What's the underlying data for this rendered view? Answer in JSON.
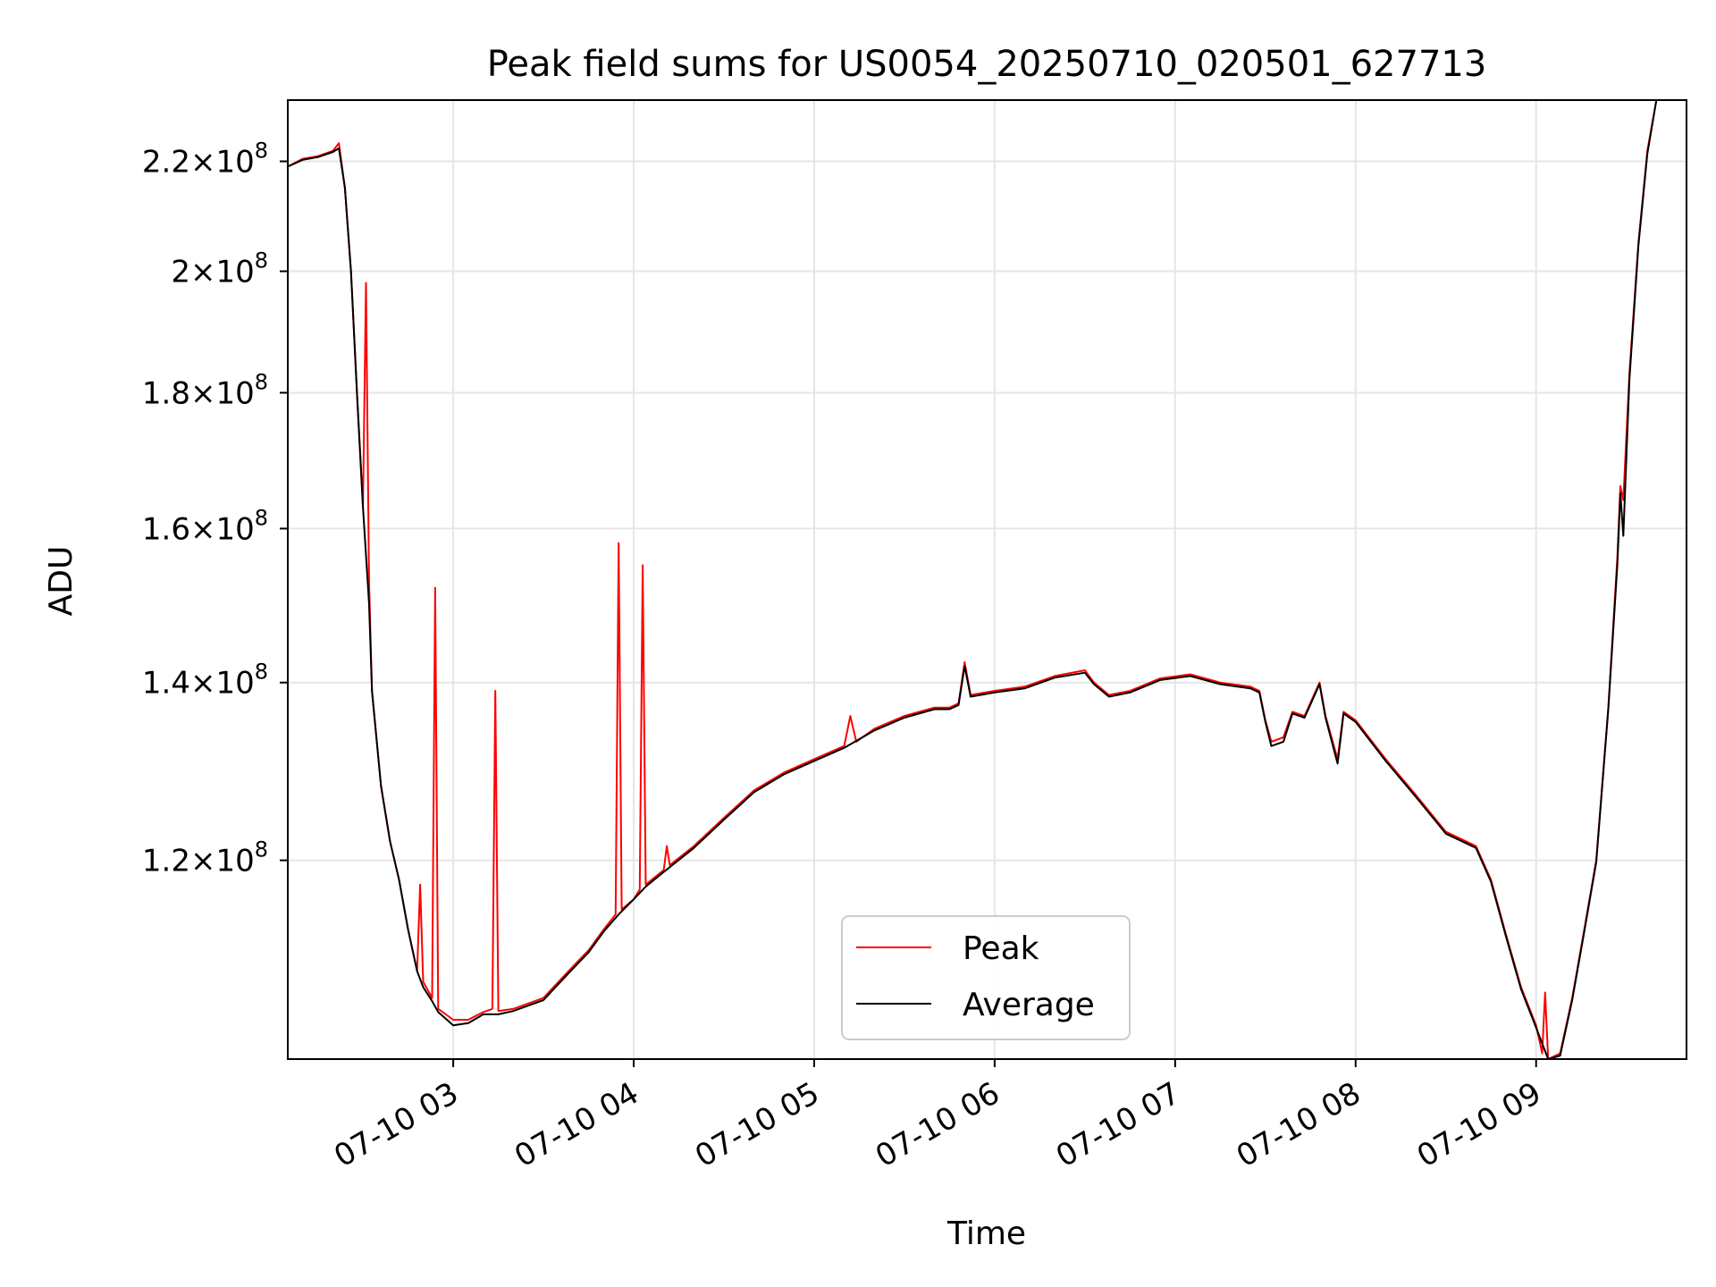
{
  "chart_data": {
    "type": "line",
    "title": "Peak field sums for US0054_20250710_020501_627713",
    "xlabel": "Time",
    "ylabel": "ADU",
    "x_axis": "time",
    "y_scale": "log",
    "xlim": [
      "07-10 02:05",
      "07-10 09:50"
    ],
    "ylim": [
      101000000,
      232000000
    ],
    "grid": true,
    "legend_position": "bottom-center",
    "x_ticks": [
      {
        "time": "07-10 03:00",
        "label": "07-10 03"
      },
      {
        "time": "07-10 04:00",
        "label": "07-10 04"
      },
      {
        "time": "07-10 05:00",
        "label": "07-10 05"
      },
      {
        "time": "07-10 06:00",
        "label": "07-10 06"
      },
      {
        "time": "07-10 07:00",
        "label": "07-10 07"
      },
      {
        "time": "07-10 08:00",
        "label": "07-10 08"
      },
      {
        "time": "07-10 09:00",
        "label": "07-10 09"
      }
    ],
    "y_ticks": [
      {
        "value": 120000000,
        "mantissa": "1.2",
        "exponent": "8"
      },
      {
        "value": 140000000,
        "mantissa": "1.4",
        "exponent": "8"
      },
      {
        "value": 160000000,
        "mantissa": "1.6",
        "exponent": "8"
      },
      {
        "value": 180000000,
        "mantissa": "1.8",
        "exponent": "8"
      },
      {
        "value": 200000000,
        "mantissa": "2",
        "exponent": "8"
      },
      {
        "value": 220000000,
        "mantissa": "2.2",
        "exponent": "8"
      }
    ],
    "series": [
      {
        "name": "Peak",
        "color": "#ff0000",
        "points": [
          [
            "07-10 02:05",
            219000000
          ],
          [
            "07-10 02:10",
            220500000
          ],
          [
            "07-10 02:15",
            221000000
          ],
          [
            "07-10 02:20",
            222000000
          ],
          [
            "07-10 02:22",
            223500000
          ],
          [
            "07-10 02:24",
            215000000
          ],
          [
            "07-10 02:26",
            200000000
          ],
          [
            "07-10 02:28",
            180000000
          ],
          [
            "07-10 02:30",
            163000000
          ],
          [
            "07-10 02:31",
            198000000
          ],
          [
            "07-10 02:32",
            153000000
          ],
          [
            "07-10 02:33",
            139000000
          ],
          [
            "07-10 02:36",
            128000000
          ],
          [
            "07-10 02:39",
            122000000
          ],
          [
            "07-10 02:42",
            118000000
          ],
          [
            "07-10 02:45",
            113000000
          ],
          [
            "07-10 02:48",
            109000000
          ],
          [
            "07-10 02:49",
            117500000
          ],
          [
            "07-10 02:50",
            108000000
          ],
          [
            "07-10 02:53",
            106500000
          ],
          [
            "07-10 02:54",
            152000000
          ],
          [
            "07-10 02:55",
            105500000
          ],
          [
            "07-10 03:00",
            104500000
          ],
          [
            "07-10 03:05",
            104500000
          ],
          [
            "07-10 03:10",
            105200000
          ],
          [
            "07-10 03:13",
            105500000
          ],
          [
            "07-10 03:14",
            139000000
          ],
          [
            "07-10 03:15",
            105300000
          ],
          [
            "07-10 03:20",
            105500000
          ],
          [
            "07-10 03:25",
            106000000
          ],
          [
            "07-10 03:30",
            106500000
          ],
          [
            "07-10 03:35",
            108000000
          ],
          [
            "07-10 03:40",
            109500000
          ],
          [
            "07-10 03:45",
            111000000
          ],
          [
            "07-10 03:50",
            113000000
          ],
          [
            "07-10 03:54",
            114500000
          ],
          [
            "07-10 03:55",
            158000000
          ],
          [
            "07-10 03:56",
            115000000
          ],
          [
            "07-10 04:00",
            116000000
          ],
          [
            "07-10 04:02",
            117000000
          ],
          [
            "07-10 04:03",
            155000000
          ],
          [
            "07-10 04:04",
            117500000
          ],
          [
            "07-10 04:10",
            119000000
          ],
          [
            "07-10 04:11",
            121500000
          ],
          [
            "07-10 04:12",
            119500000
          ],
          [
            "07-10 04:20",
            121500000
          ],
          [
            "07-10 04:30",
            124500000
          ],
          [
            "07-10 04:40",
            127500000
          ],
          [
            "07-10 04:50",
            129500000
          ],
          [
            "07-10 05:00",
            131000000
          ],
          [
            "07-10 05:10",
            132500000
          ],
          [
            "07-10 05:12",
            136000000
          ],
          [
            "07-10 05:14",
            133000000
          ],
          [
            "07-10 05:20",
            134500000
          ],
          [
            "07-10 05:30",
            136000000
          ],
          [
            "07-10 05:40",
            137000000
          ],
          [
            "07-10 05:45",
            137000000
          ],
          [
            "07-10 05:48",
            137500000
          ],
          [
            "07-10 05:50",
            142500000
          ],
          [
            "07-10 05:52",
            138500000
          ],
          [
            "07-10 06:00",
            139000000
          ],
          [
            "07-10 06:10",
            139500000
          ],
          [
            "07-10 06:20",
            140800000
          ],
          [
            "07-10 06:30",
            141500000
          ],
          [
            "07-10 06:33",
            140000000
          ],
          [
            "07-10 06:38",
            138500000
          ],
          [
            "07-10 06:45",
            139000000
          ],
          [
            "07-10 06:55",
            140500000
          ],
          [
            "07-10 07:05",
            141000000
          ],
          [
            "07-10 07:15",
            140000000
          ],
          [
            "07-10 07:25",
            139500000
          ],
          [
            "07-10 07:28",
            139000000
          ],
          [
            "07-10 07:30",
            135500000
          ],
          [
            "07-10 07:32",
            133000000
          ],
          [
            "07-10 07:36",
            133500000
          ],
          [
            "07-10 07:39",
            136500000
          ],
          [
            "07-10 07:43",
            136000000
          ],
          [
            "07-10 07:48",
            140000000
          ],
          [
            "07-10 07:50",
            136000000
          ],
          [
            "07-10 07:54",
            131000000
          ],
          [
            "07-10 07:56",
            136500000
          ],
          [
            "07-10 08:00",
            135500000
          ],
          [
            "07-10 08:10",
            131000000
          ],
          [
            "07-10 08:20",
            127000000
          ],
          [
            "07-10 08:30",
            123000000
          ],
          [
            "07-10 08:40",
            121500000
          ],
          [
            "07-10 08:45",
            118000000
          ],
          [
            "07-10 08:50",
            112500000
          ],
          [
            "07-10 08:55",
            107500000
          ],
          [
            "07-10 09:00",
            104000000
          ],
          [
            "07-10 09:02",
            101500000
          ],
          [
            "07-10 09:03",
            107000000
          ],
          [
            "07-10 09:04",
            101000000
          ],
          [
            "07-10 09:08",
            101500000
          ],
          [
            "07-10 09:12",
            106500000
          ],
          [
            "07-10 09:16",
            113000000
          ],
          [
            "07-10 09:20",
            120000000
          ],
          [
            "07-10 09:24",
            137000000
          ],
          [
            "07-10 09:27",
            156000000
          ],
          [
            "07-10 09:28",
            166000000
          ],
          [
            "07-10 09:29",
            164000000
          ],
          [
            "07-10 09:31",
            183000000
          ],
          [
            "07-10 09:34",
            205000000
          ],
          [
            "07-10 09:37",
            222000000
          ],
          [
            "07-10 09:40",
            232000000
          ]
        ]
      },
      {
        "name": "Average",
        "color": "#000000",
        "points": [
          [
            "07-10 02:05",
            219000000
          ],
          [
            "07-10 02:10",
            220300000
          ],
          [
            "07-10 02:15",
            220800000
          ],
          [
            "07-10 02:20",
            221800000
          ],
          [
            "07-10 02:22",
            222500000
          ],
          [
            "07-10 02:24",
            215000000
          ],
          [
            "07-10 02:26",
            200000000
          ],
          [
            "07-10 02:28",
            180000000
          ],
          [
            "07-10 02:30",
            163000000
          ],
          [
            "07-10 02:32",
            150000000
          ],
          [
            "07-10 02:33",
            139000000
          ],
          [
            "07-10 02:36",
            128000000
          ],
          [
            "07-10 02:39",
            122000000
          ],
          [
            "07-10 02:42",
            118000000
          ],
          [
            "07-10 02:45",
            113000000
          ],
          [
            "07-10 02:48",
            109000000
          ],
          [
            "07-10 02:50",
            107500000
          ],
          [
            "07-10 02:53",
            106200000
          ],
          [
            "07-10 02:55",
            105200000
          ],
          [
            "07-10 03:00",
            104000000
          ],
          [
            "07-10 03:05",
            104200000
          ],
          [
            "07-10 03:10",
            105000000
          ],
          [
            "07-10 03:15",
            105000000
          ],
          [
            "07-10 03:20",
            105300000
          ],
          [
            "07-10 03:25",
            105800000
          ],
          [
            "07-10 03:30",
            106300000
          ],
          [
            "07-10 03:35",
            107800000
          ],
          [
            "07-10 03:40",
            109300000
          ],
          [
            "07-10 03:45",
            110800000
          ],
          [
            "07-10 03:50",
            112800000
          ],
          [
            "07-10 03:55",
            114500000
          ],
          [
            "07-10 04:00",
            116000000
          ],
          [
            "07-10 04:04",
            117300000
          ],
          [
            "07-10 04:10",
            118800000
          ],
          [
            "07-10 04:20",
            121300000
          ],
          [
            "07-10 04:30",
            124300000
          ],
          [
            "07-10 04:40",
            127300000
          ],
          [
            "07-10 04:50",
            129300000
          ],
          [
            "07-10 05:00",
            130800000
          ],
          [
            "07-10 05:10",
            132300000
          ],
          [
            "07-10 05:20",
            134300000
          ],
          [
            "07-10 05:30",
            135800000
          ],
          [
            "07-10 05:40",
            136800000
          ],
          [
            "07-10 05:45",
            136800000
          ],
          [
            "07-10 05:48",
            137300000
          ],
          [
            "07-10 05:50",
            142000000
          ],
          [
            "07-10 05:52",
            138300000
          ],
          [
            "07-10 06:00",
            138800000
          ],
          [
            "07-10 06:10",
            139300000
          ],
          [
            "07-10 06:20",
            140600000
          ],
          [
            "07-10 06:30",
            141200000
          ],
          [
            "07-10 06:33",
            139800000
          ],
          [
            "07-10 06:38",
            138300000
          ],
          [
            "07-10 06:45",
            138800000
          ],
          [
            "07-10 06:55",
            140300000
          ],
          [
            "07-10 07:05",
            140800000
          ],
          [
            "07-10 07:15",
            139800000
          ],
          [
            "07-10 07:25",
            139300000
          ],
          [
            "07-10 07:28",
            138800000
          ],
          [
            "07-10 07:30",
            135300000
          ],
          [
            "07-10 07:32",
            132500000
          ],
          [
            "07-10 07:36",
            133000000
          ],
          [
            "07-10 07:39",
            136300000
          ],
          [
            "07-10 07:43",
            135800000
          ],
          [
            "07-10 07:48",
            139800000
          ],
          [
            "07-10 07:50",
            135800000
          ],
          [
            "07-10 07:54",
            130500000
          ],
          [
            "07-10 07:56",
            136300000
          ],
          [
            "07-10 08:00",
            135300000
          ],
          [
            "07-10 08:10",
            130800000
          ],
          [
            "07-10 08:20",
            126800000
          ],
          [
            "07-10 08:30",
            122800000
          ],
          [
            "07-10 08:40",
            121300000
          ],
          [
            "07-10 08:45",
            117800000
          ],
          [
            "07-10 08:50",
            112300000
          ],
          [
            "07-10 08:55",
            107300000
          ],
          [
            "07-10 09:00",
            103800000
          ],
          [
            "07-10 09:04",
            101000000
          ],
          [
            "07-10 09:08",
            101300000
          ],
          [
            "07-10 09:12",
            106300000
          ],
          [
            "07-10 09:16",
            112800000
          ],
          [
            "07-10 09:20",
            119800000
          ],
          [
            "07-10 09:24",
            136800000
          ],
          [
            "07-10 09:27",
            155000000
          ],
          [
            "07-10 09:28",
            165000000
          ],
          [
            "07-10 09:29",
            159000000
          ],
          [
            "07-10 09:31",
            182000000
          ],
          [
            "07-10 09:34",
            204500000
          ],
          [
            "07-10 09:37",
            221500000
          ],
          [
            "07-10 09:40",
            232000000
          ]
        ]
      }
    ]
  }
}
